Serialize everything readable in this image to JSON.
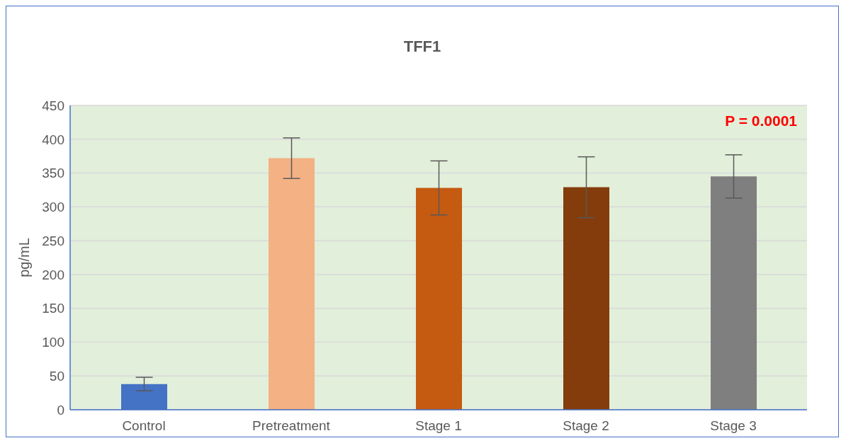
{
  "chart_data": {
    "type": "bar",
    "title": "TFF1",
    "ylabel": "pg/mL",
    "categories": [
      "Control",
      "Pretreatment",
      "Stage 1",
      "Stage 2",
      "Stage 3"
    ],
    "values": [
      38,
      372,
      328,
      329,
      345
    ],
    "errors": [
      10,
      30,
      40,
      45,
      32
    ],
    "colors": [
      "#4472c4",
      "#f4b183",
      "#c55a11",
      "#843c0c",
      "#7f7f7f"
    ],
    "ylim": [
      0,
      450
    ],
    "yticks": [
      0,
      50,
      100,
      150,
      200,
      250,
      300,
      350,
      400,
      450
    ],
    "grid": "y",
    "legend": false,
    "annotations": [
      "P = 0.0001"
    ]
  }
}
